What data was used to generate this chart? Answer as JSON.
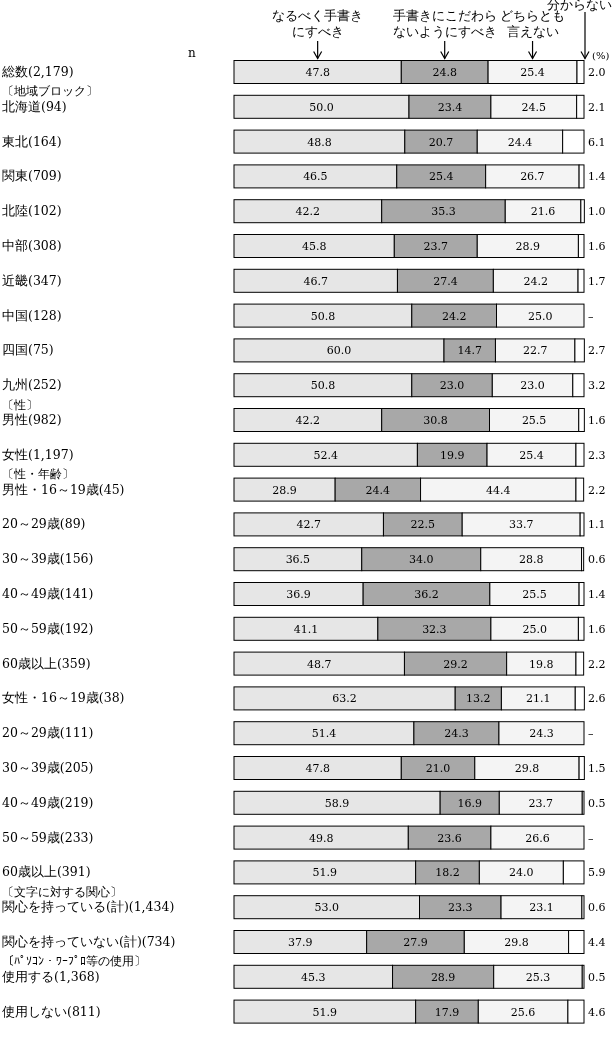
{
  "chart_data": {
    "type": "bar",
    "orientation": "horizontal",
    "stacked": true,
    "legend": "top",
    "xlim": [
      0,
      100
    ],
    "tick_labels": "y",
    "categories": [
      "総数(2,179)",
      "〔地域ブロック〕",
      "北海道(94)",
      "東北(164)",
      "関東(709)",
      "北陸(102)",
      "中部(308)",
      "近畿(347)",
      "中国(128)",
      "四国(75)",
      "九州(252)",
      "〔性〕",
      "男性(982)",
      "女性(1,197)",
      "〔性・年齢〕",
      "男性・16～19歳(45)",
      "20～29歳(89)",
      "30～39歳(156)",
      "40～49歳(141)",
      "50～59歳(192)",
      "60歳以上(359)",
      "女性・16～19歳(38)",
      "20～29歳(111)",
      "30～39歳(205)",
      "40～49歳(219)",
      "50～59歳(233)",
      "60歳以上(391)",
      "〔文字に対する関心〕",
      "関心を持っている(計)(1,434)",
      "関心を持っていない(計)(734)",
      "〔ﾊﾟｿｺﾝ・ﾜｰﾌﾟﾛ等の使用〕",
      "使用する(1,368)",
      "使用しない(811)"
    ],
    "series": [
      {
        "name": "なるべく手書きにすべき",
        "color": "#e6e6e6",
        "values": [
          47.8,
          null,
          50.0,
          48.8,
          46.5,
          42.2,
          45.8,
          46.7,
          50.8,
          60.0,
          50.8,
          null,
          42.2,
          52.4,
          null,
          28.9,
          42.7,
          36.5,
          36.9,
          41.1,
          48.7,
          63.2,
          51.4,
          47.8,
          58.9,
          49.8,
          51.9,
          null,
          53.0,
          37.9,
          null,
          45.3,
          51.9
        ],
        "value_labels": [
          "47.8",
          null,
          "50.0",
          "48.8",
          "46.5",
          "42.2",
          "45.8",
          "46.7",
          "50.8",
          "60.0",
          "50.8",
          null,
          "42.2",
          "52.4",
          null,
          "28.9",
          "42.7",
          "36.5",
          "36.9",
          "41.1",
          "48.7",
          "63.2",
          "51.4",
          "47.8",
          "58.9",
          "49.8",
          "51.9",
          null,
          "53.0",
          "37.9",
          null,
          "45.3",
          "51.9"
        ]
      },
      {
        "name": "手書きにこだわらないようにすべき",
        "color": "#a8a8a8",
        "values": [
          24.8,
          null,
          23.4,
          20.7,
          25.4,
          35.3,
          23.7,
          27.4,
          24.2,
          14.7,
          23.0,
          null,
          30.8,
          19.9,
          null,
          24.4,
          22.5,
          34.0,
          36.2,
          32.3,
          29.2,
          13.2,
          24.3,
          21.0,
          16.9,
          23.6,
          18.2,
          null,
          23.3,
          27.9,
          null,
          28.9,
          17.9
        ],
        "value_labels": [
          "24.8",
          null,
          "23.4",
          "20.7",
          "25.4",
          "35.3",
          "23.7",
          "27.4",
          "24.2",
          "14.7",
          "23.0",
          null,
          "30.8",
          "19.9",
          null,
          "24.4",
          "22.5",
          "34.0",
          "36.2",
          "32.3",
          "29.2",
          "13.2",
          "24.3",
          "21.0",
          "16.9",
          "23.6",
          "18.2",
          null,
          "23.3",
          "27.9",
          null,
          "28.9",
          "17.9"
        ]
      },
      {
        "name": "どちらとも言えない",
        "color": "#f4f4f4",
        "values": [
          25.4,
          null,
          24.5,
          24.4,
          26.7,
          21.6,
          28.9,
          24.2,
          25.0,
          22.7,
          23.0,
          null,
          25.5,
          25.4,
          null,
          44.4,
          33.7,
          28.8,
          25.5,
          25.0,
          19.8,
          21.1,
          24.3,
          29.8,
          23.7,
          26.6,
          24.0,
          null,
          23.1,
          29.8,
          null,
          25.3,
          25.6
        ],
        "value_labels": [
          "25.4",
          null,
          "24.5",
          "24.4",
          "26.7",
          "21.6",
          "28.9",
          "24.2",
          "25.0",
          "22.7",
          "23.0",
          null,
          "25.5",
          "25.4",
          null,
          "44.4",
          "33.7",
          "28.8",
          "25.5",
          "25.0",
          "19.8",
          "21.1",
          "24.3",
          "29.8",
          "23.7",
          "26.6",
          "24.0",
          null,
          "23.1",
          "29.8",
          null,
          "25.3",
          "25.6"
        ]
      },
      {
        "name": "分からない",
        "color": "#ffffff",
        "values": [
          2.0,
          null,
          2.1,
          6.1,
          1.4,
          1.0,
          1.6,
          1.7,
          0,
          2.7,
          3.2,
          null,
          1.6,
          2.3,
          null,
          2.2,
          1.1,
          0.6,
          1.4,
          1.6,
          2.2,
          2.6,
          0,
          1.5,
          0.5,
          0,
          5.9,
          null,
          0.6,
          4.4,
          null,
          0.5,
          4.6
        ],
        "value_labels": [
          "2.0",
          null,
          "2.1",
          "6.1",
          "1.4",
          "1.0",
          "1.6",
          "1.7",
          "–",
          "2.7",
          "3.2",
          null,
          "1.6",
          "2.3",
          null,
          "2.2",
          "1.1",
          "0.6",
          "1.4",
          "1.6",
          "2.2",
          "2.6",
          "–",
          "1.5",
          "0.5",
          "–",
          "5.9",
          null,
          "0.6",
          "4.4",
          null,
          "0.5",
          "4.6"
        ]
      }
    ],
    "annotations": [
      "n",
      "(%)"
    ]
  }
}
